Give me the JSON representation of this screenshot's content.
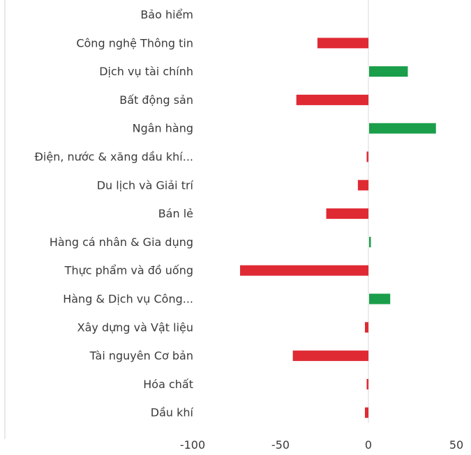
{
  "chart_data": {
    "type": "bar",
    "orientation": "horizontal",
    "categories": [
      "Bảo hiểm",
      "Công nghệ Thông tin",
      "Dịch vụ tài chính",
      "Bất động sản",
      "Ngân hàng",
      "Điện, nước & xăng dầu khí...",
      "Du lịch và Giải trí",
      "Bán lẻ",
      "Hàng cá nhân & Gia dụng",
      "Thực phẩm và đồ uống",
      "Hàng & Dịch vụ Công...",
      "Xây dựng và Vật liệu",
      "Tài nguyên Cơ bản",
      "Hóa chất",
      "Dầu khí"
    ],
    "values": [
      0,
      -29,
      22,
      -41,
      38,
      -1,
      -6,
      -24,
      1,
      -73,
      12,
      -2,
      -43,
      -1,
      -2
    ],
    "xlim": [
      -100,
      50
    ],
    "xticks": [
      "-100",
      "-50",
      "0",
      "50"
    ],
    "colors": {
      "positive": "#1a9e4a",
      "negative": "#df2a34"
    },
    "grid": false,
    "legend": "none"
  }
}
